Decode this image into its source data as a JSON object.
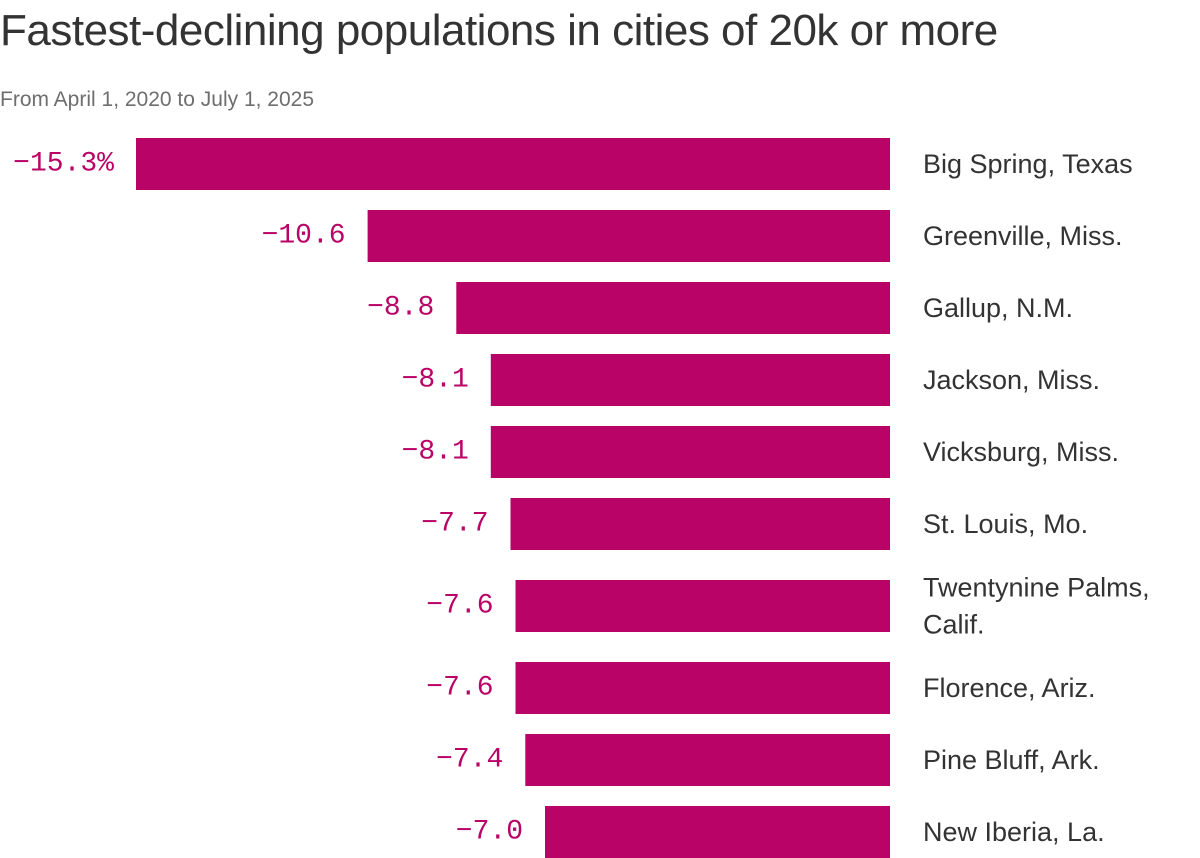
{
  "title": "Fastest-declining populations in cities of 20k or more",
  "subtitle": "From April 1, 2020 to July 1, 2025",
  "colors": {
    "bar": "#b90366",
    "value_text": "#b90366",
    "label_text": "#333333"
  },
  "chart_data": {
    "type": "bar",
    "orientation": "horizontal",
    "categories": [
      "Big Spring, Texas",
      "Greenville, Miss.",
      "Gallup, N.M.",
      "Jackson, Miss.",
      "Vicksburg, Miss.",
      "St. Louis, Mo.",
      "Twentynine Palms, Calif.",
      "Florence, Ariz.",
      "Pine Bluff, Ark.",
      "New Iberia, La."
    ],
    "category_label_lines": [
      [
        "Big Spring, Texas"
      ],
      [
        "Greenville, Miss."
      ],
      [
        "Gallup, N.M."
      ],
      [
        "Jackson, Miss."
      ],
      [
        "Vicksburg, Miss."
      ],
      [
        "St. Louis, Mo."
      ],
      [
        "Twentynine Palms,",
        "Calif."
      ],
      [
        "Florence, Ariz."
      ],
      [
        "Pine Bluff, Ark."
      ],
      [
        "New Iberia, La."
      ]
    ],
    "values": [
      -15.3,
      -10.6,
      -8.8,
      -8.1,
      -8.1,
      -7.7,
      -7.6,
      -7.6,
      -7.4,
      -7.0
    ],
    "value_labels": [
      "−15.3%",
      "−10.6",
      "−8.8",
      "−8.1",
      "−8.1",
      "−7.7",
      "−7.6",
      "−7.6",
      "−7.4",
      "−7.0"
    ],
    "unit": "%",
    "xlim": [
      -15.3,
      0
    ],
    "grid": false,
    "legend": "none"
  }
}
